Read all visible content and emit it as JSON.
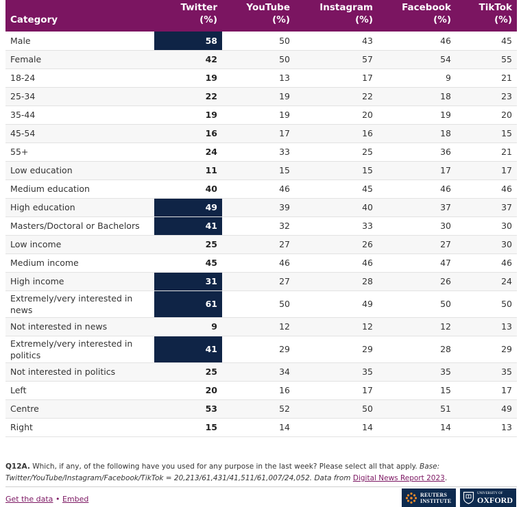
{
  "chart_data": {
    "type": "table",
    "columns": [
      "Category",
      "Twitter (%)",
      "YouTube (%)",
      "Instagram (%)",
      "Facebook (%)",
      "TikTok (%)"
    ],
    "rows": [
      {
        "category": "Male",
        "values": [
          58,
          50,
          43,
          46,
          45
        ],
        "highlight": true
      },
      {
        "category": "Female",
        "values": [
          42,
          50,
          57,
          54,
          55
        ],
        "highlight": false
      },
      {
        "category": "18-24",
        "values": [
          19,
          13,
          17,
          9,
          21
        ],
        "highlight": false
      },
      {
        "category": "25-34",
        "values": [
          22,
          19,
          22,
          18,
          23
        ],
        "highlight": false
      },
      {
        "category": "35-44",
        "values": [
          19,
          19,
          20,
          19,
          20
        ],
        "highlight": false
      },
      {
        "category": "45-54",
        "values": [
          16,
          17,
          16,
          18,
          15
        ],
        "highlight": false
      },
      {
        "category": "55+",
        "values": [
          24,
          33,
          25,
          36,
          21
        ],
        "highlight": false
      },
      {
        "category": "Low education",
        "values": [
          11,
          15,
          15,
          17,
          17
        ],
        "highlight": false
      },
      {
        "category": "Medium education",
        "values": [
          40,
          46,
          45,
          46,
          46
        ],
        "highlight": false
      },
      {
        "category": "High education",
        "values": [
          49,
          39,
          40,
          37,
          37
        ],
        "highlight": true
      },
      {
        "category": "Masters/Doctoral or Bachelors",
        "values": [
          41,
          32,
          33,
          30,
          30
        ],
        "highlight": true
      },
      {
        "category": "Low income",
        "values": [
          25,
          27,
          26,
          27,
          30
        ],
        "highlight": false
      },
      {
        "category": "Medium income",
        "values": [
          45,
          46,
          46,
          47,
          46
        ],
        "highlight": false
      },
      {
        "category": "High income",
        "values": [
          31,
          27,
          28,
          26,
          24
        ],
        "highlight": true
      },
      {
        "category": "Extremely/very interested in news",
        "values": [
          61,
          50,
          49,
          50,
          50
        ],
        "highlight": true
      },
      {
        "category": "Not interested in news",
        "values": [
          9,
          12,
          12,
          12,
          13
        ],
        "highlight": false
      },
      {
        "category": "Extremely/very interested in politics",
        "values": [
          41,
          29,
          29,
          28,
          29
        ],
        "highlight": true
      },
      {
        "category": "Not interested in politics",
        "values": [
          25,
          34,
          35,
          35,
          35
        ],
        "highlight": false
      },
      {
        "category": "Left",
        "values": [
          20,
          16,
          17,
          15,
          17
        ],
        "highlight": false
      },
      {
        "category": "Centre",
        "values": [
          53,
          52,
          50,
          51,
          49
        ],
        "highlight": false
      },
      {
        "category": "Right",
        "values": [
          15,
          14,
          14,
          14,
          13
        ],
        "highlight": false
      }
    ]
  },
  "header": {
    "category": "Category",
    "columns": [
      {
        "name": "Twitter",
        "unit": "(%)"
      },
      {
        "name": "YouTube",
        "unit": "(%)"
      },
      {
        "name": "Instagram",
        "unit": "(%)"
      },
      {
        "name": "Facebook",
        "unit": "(%)"
      },
      {
        "name": "TikTok",
        "unit": "(%)"
      }
    ]
  },
  "footnote": {
    "code": "Q12A.",
    "question": "Which, if any, of the following have you used for any purpose in the last week? Please select all that apply.",
    "base_label": "Base:",
    "base": "Twitter/YouTube/Instagram/Facebook/TikTok = 20,213/61,431/41,511/61,007/24,052. Data from",
    "source_link": "Digital News Report 2023",
    "end": "."
  },
  "links": {
    "get_data": "Get the data",
    "separator": "•",
    "embed": "Embed"
  },
  "logos": {
    "reuters_line1": "REUTERS",
    "reuters_line2": "INSTITUTE",
    "oxford_line1": "UNIVERSITY OF",
    "oxford_line2": "OXFORD"
  },
  "colors": {
    "header_bg": "#7b1561",
    "highlight_bg": "#0f2446",
    "link": "#7b1561",
    "logo_bg": "#0d2a4e"
  }
}
